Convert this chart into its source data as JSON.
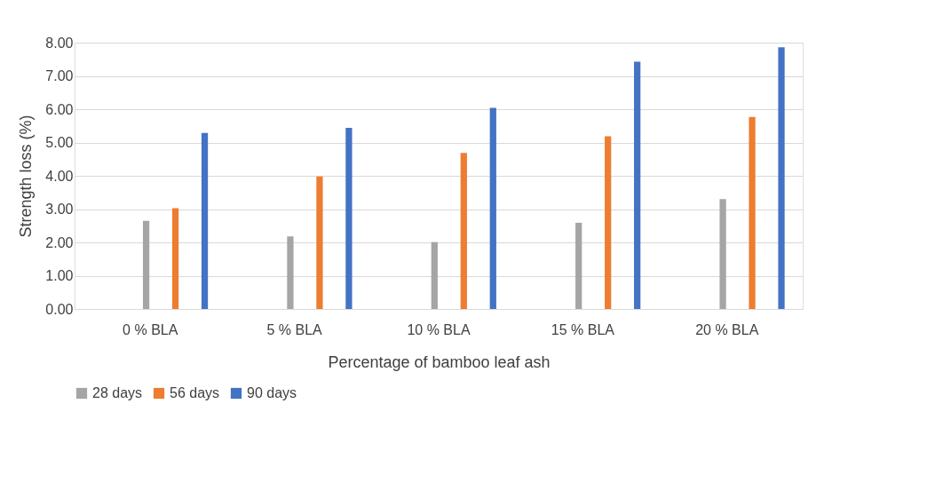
{
  "chart_data": {
    "type": "bar",
    "xlabel": "Percentage of bamboo leaf ash",
    "ylabel": "Strength loss (%)",
    "categories": [
      "0 % BLA",
      "5 % BLA",
      "10 % BLA",
      "15 % BLA",
      "20 % BLA"
    ],
    "series": [
      {
        "name": "28 days",
        "color": "#a5a5a5",
        "values": [
          2.65,
          2.18,
          2.01,
          2.59,
          3.3
        ]
      },
      {
        "name": "56 days",
        "color": "#ed7d31",
        "values": [
          3.03,
          3.98,
          4.69,
          5.19,
          5.77
        ]
      },
      {
        "name": "90 days",
        "color": "#4472c4",
        "values": [
          5.29,
          5.44,
          6.04,
          7.43,
          7.86
        ]
      }
    ],
    "ylim": [
      0,
      8
    ],
    "yticks": [
      {
        "value": 0,
        "label": "0.00"
      },
      {
        "value": 1,
        "label": "1.00"
      },
      {
        "value": 2,
        "label": "2.00"
      },
      {
        "value": 3,
        "label": "3.00"
      },
      {
        "value": 4,
        "label": "4.00"
      },
      {
        "value": 5,
        "label": "5.00"
      },
      {
        "value": 6,
        "label": "6.00"
      },
      {
        "value": 7,
        "label": "7.00"
      },
      {
        "value": 8,
        "label": "8.00"
      }
    ],
    "grid": "y",
    "legend": "bottom"
  }
}
